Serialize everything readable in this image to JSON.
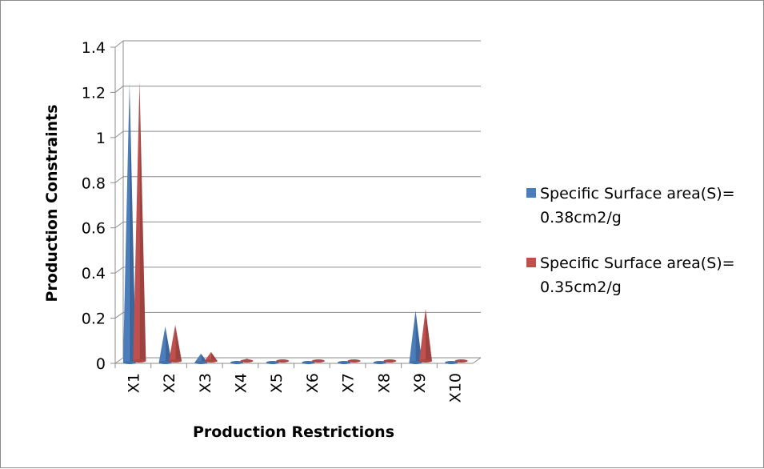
{
  "chart_data": {
    "type": "bar",
    "style": "3d-cone",
    "categories": [
      "X1",
      "X2",
      "X3",
      "X4",
      "X5",
      "X6",
      "X7",
      "X8",
      "X9",
      "X10"
    ],
    "series": [
      {
        "name_lines": [
          "Specific Surface area(S)=",
          "0.38cm2/g"
        ],
        "color": "#4a7dbc",
        "values": [
          1.24,
          0.16,
          0.04,
          0.005,
          0.005,
          0.005,
          0.005,
          0.005,
          0.23,
          0.005
        ]
      },
      {
        "name_lines": [
          "Specific Surface area(S)=",
          "0.35cm2/g"
        ],
        "color": "#c0504d",
        "values": [
          1.24,
          0.16,
          0.04,
          0.01,
          0.005,
          0.005,
          0.005,
          0.005,
          0.23,
          0.005
        ]
      }
    ],
    "y_ticks": [
      "0",
      "0.2",
      "0.4",
      "0.6",
      "0.8",
      "1",
      "1.2",
      "1.4"
    ],
    "ylim": [
      0,
      1.4
    ],
    "xlabel": "Production Restrictions",
    "ylabel": "Production Constraints",
    "grid": true,
    "legend_position": "right"
  }
}
